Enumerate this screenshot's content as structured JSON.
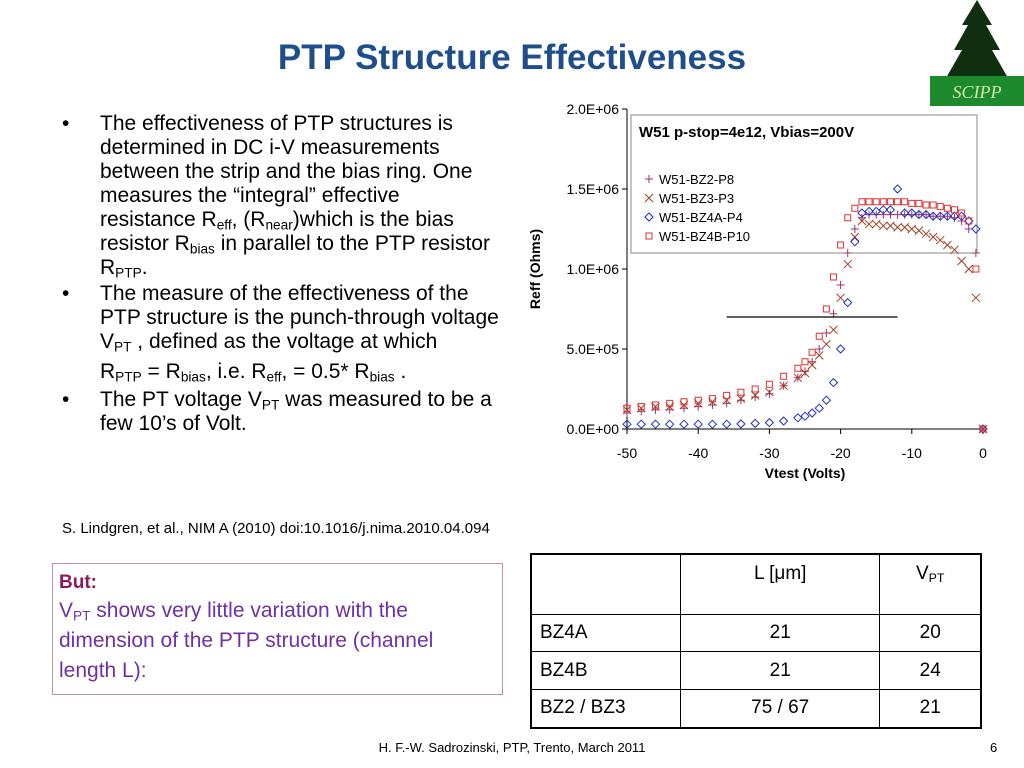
{
  "title": "PTP Structure Effectiveness",
  "logo": "SCIPP",
  "bullets": [
    [
      {
        "t": "The effectiveness of PTP structures is determined in DC i-V measurements between the strip and the bias ring. One measures the “integral” effective resistance R"
      },
      {
        "sub": "eff"
      },
      {
        "t": ", (R"
      },
      {
        "sub": "near"
      },
      {
        "t": ")which is the bias resistor R"
      },
      {
        "sub": "bias"
      },
      {
        "t": " in parallel to the PTP resistor R"
      },
      {
        "sub": "PTP"
      },
      {
        "t": "."
      }
    ],
    [
      {
        "t": "The measure of the effectiveness of the PTP structure is the punch-through voltage V"
      },
      {
        "sub": "PT"
      },
      {
        "t": " , defined as the voltage at which"
      }
    ],
    [
      {
        "t": "The PT voltage V"
      },
      {
        "sub": "PT"
      },
      {
        "t": " was measured to be a few 10’s of Volt."
      }
    ]
  ],
  "formula": [
    {
      "t": "R"
    },
    {
      "sub": "PTP"
    },
    {
      "t": " =  R"
    },
    {
      "sub": "bias"
    },
    {
      "t": ", i.e. R"
    },
    {
      "sub": "eff"
    },
    {
      "t": ", = 0.5* R"
    },
    {
      "sub": "bias"
    },
    {
      "t": " ."
    }
  ],
  "reference": "S. Lindgren, et al., NIM A (2010) doi:10.1016/j.nima.2010.04.094",
  "box": {
    "heading": "But:",
    "text": [
      {
        "t": "V"
      },
      {
        "sub": "PT"
      },
      {
        "t": " shows very little variation with the dimension of the PTP structure (channel length L):"
      }
    ]
  },
  "table": {
    "header": [
      [
        {
          "t": "L ["
        },
        {
          "t": "μ"
        },
        {
          "t": "m]"
        }
      ],
      [
        {
          "t": "V"
        },
        {
          "sub": "PT"
        }
      ]
    ],
    "rows": [
      [
        "BZ4A",
        "21",
        "20"
      ],
      [
        "BZ4B",
        "21",
        "24"
      ],
      [
        "BZ2 / BZ3",
        "75 / 67",
        "21"
      ]
    ]
  },
  "footer": "H. F.-W.  Sadrozinski, PTP,  Trento, March 2011",
  "page": "6",
  "chart_data": {
    "type": "scatter",
    "title": "W51 p-stop=4e12, Vbias=200V",
    "xlabel": "Vtest (Volts)",
    "ylabel": "Reff (Ohms)",
    "xlim": [
      -50,
      0
    ],
    "xticks": [
      -50,
      -40,
      -30,
      -20,
      -10,
      0
    ],
    "ylim": [
      0,
      2000000
    ],
    "yticks": [
      {
        "value": 0,
        "label": "0.0E+00"
      },
      {
        "value": 500000,
        "label": "5.0E+05"
      },
      {
        "value": 1000000,
        "label": "1.0E+06"
      },
      {
        "value": 1500000,
        "label": "1.5E+06"
      },
      {
        "value": 2000000,
        "label": "2.0E+06"
      }
    ],
    "x": [
      -50,
      -48,
      -46,
      -44,
      -42,
      -40,
      -38,
      -36,
      -34,
      -32,
      -30,
      -28,
      -26,
      -25,
      -24,
      -23,
      -22,
      -21,
      -20,
      -19,
      -18,
      -17,
      -16,
      -15,
      -14,
      -13,
      -12,
      -11,
      -10,
      -9,
      -8,
      -7,
      -6,
      -5,
      -4,
      -3,
      -2,
      -1,
      0
    ],
    "series": [
      {
        "name": "W51-BZ2-P8",
        "color": "#a0306a",
        "marker": "plus",
        "values": [
          100000,
          110000,
          120000,
          120000,
          130000,
          140000,
          150000,
          160000,
          180000,
          200000,
          220000,
          270000,
          320000,
          360000,
          420000,
          500000,
          600000,
          720000,
          900000,
          1100000,
          1250000,
          1320000,
          1340000,
          1340000,
          1340000,
          1340000,
          1340000,
          1340000,
          1340000,
          1340000,
          1340000,
          1330000,
          1330000,
          1330000,
          1320000,
          1300000,
          1250000,
          1100000,
          0
        ]
      },
      {
        "name": "W51-BZ3-P3",
        "color": "#a04020",
        "marker": "cross",
        "values": [
          120000,
          130000,
          140000,
          140000,
          150000,
          160000,
          170000,
          180000,
          190000,
          210000,
          230000,
          270000,
          320000,
          350000,
          400000,
          460000,
          530000,
          620000,
          820000,
          1030000,
          1200000,
          1300000,
          1280000,
          1280000,
          1270000,
          1270000,
          1260000,
          1260000,
          1250000,
          1240000,
          1220000,
          1200000,
          1180000,
          1150000,
          1120000,
          1050000,
          1000000,
          820000,
          0
        ]
      },
      {
        "name": "W51-BZ4A-P4",
        "color": "#2030c0",
        "marker": "diamond",
        "values": [
          30000,
          30000,
          30000,
          30000,
          30000,
          30000,
          30000,
          30000,
          32000,
          35000,
          40000,
          50000,
          70000,
          80000,
          100000,
          130000,
          180000,
          290000,
          500000,
          790000,
          1170000,
          1350000,
          1360000,
          1360000,
          1370000,
          1370000,
          1500000,
          1350000,
          1350000,
          1340000,
          1340000,
          1330000,
          1330000,
          1330000,
          1330000,
          1330000,
          1300000,
          1250000,
          0
        ]
      },
      {
        "name": "W51-BZ4B-P10",
        "color": "#e03030",
        "marker": "square",
        "values": [
          130000,
          140000,
          150000,
          160000,
          170000,
          180000,
          190000,
          210000,
          230000,
          250000,
          280000,
          330000,
          380000,
          420000,
          480000,
          580000,
          750000,
          950000,
          1150000,
          1320000,
          1380000,
          1420000,
          1420000,
          1420000,
          1420000,
          1420000,
          1420000,
          1420000,
          1410000,
          1410000,
          1400000,
          1400000,
          1390000,
          1380000,
          1370000,
          1350000,
          1300000,
          1000000,
          0
        ]
      }
    ],
    "reference_line": {
      "x": [
        -36,
        -12
      ],
      "values": [
        700000,
        700000
      ],
      "color": "#000000"
    }
  }
}
